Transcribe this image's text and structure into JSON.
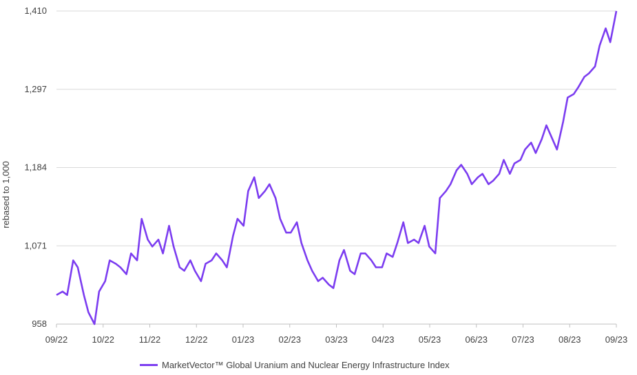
{
  "chart_data": {
    "type": "line",
    "ylabel": "rebased to 1,000",
    "yticks": [
      "958",
      "1,071",
      "1,184",
      "1,297",
      "1,410"
    ],
    "yvalues": [
      958,
      1071,
      1184,
      1297,
      1410
    ],
    "ylim": [
      958,
      1410
    ],
    "xticks": [
      "09/22",
      "10/22",
      "11/22",
      "12/22",
      "01/23",
      "02/23",
      "03/23",
      "04/23",
      "05/23",
      "06/23",
      "07/23",
      "08/23",
      "09/23"
    ],
    "grid": "horizontal",
    "legend_position": "bottom",
    "series": [
      {
        "name": "MarketVector™ Global Uranium and Nuclear Energy Infrastructure Index",
        "color": "#7b3cf0",
        "x": [
          "2022-09-01",
          "2022-09-05",
          "2022-09-08",
          "2022-09-12",
          "2022-09-15",
          "2022-09-19",
          "2022-09-22",
          "2022-09-26",
          "2022-09-29",
          "2022-10-03",
          "2022-10-06",
          "2022-10-10",
          "2022-10-13",
          "2022-10-17",
          "2022-10-20",
          "2022-10-24",
          "2022-10-27",
          "2022-10-31",
          "2022-11-03",
          "2022-11-07",
          "2022-11-10",
          "2022-11-14",
          "2022-11-17",
          "2022-11-21",
          "2022-11-24",
          "2022-11-28",
          "2022-12-01",
          "2022-12-05",
          "2022-12-08",
          "2022-12-12",
          "2022-12-15",
          "2022-12-19",
          "2022-12-22",
          "2022-12-26",
          "2022-12-29",
          "2023-01-02",
          "2023-01-05",
          "2023-01-09",
          "2023-01-12",
          "2023-01-16",
          "2023-01-19",
          "2023-01-23",
          "2023-01-26",
          "2023-01-30",
          "2023-02-02",
          "2023-02-06",
          "2023-02-09",
          "2023-02-13",
          "2023-02-16",
          "2023-02-20",
          "2023-02-23",
          "2023-02-27",
          "2023-03-02",
          "2023-03-06",
          "2023-03-09",
          "2023-03-13",
          "2023-03-16",
          "2023-03-20",
          "2023-03-23",
          "2023-03-27",
          "2023-03-30",
          "2023-04-03",
          "2023-04-06",
          "2023-04-10",
          "2023-04-13",
          "2023-04-17",
          "2023-04-20",
          "2023-04-24",
          "2023-04-27",
          "2023-05-01",
          "2023-05-04",
          "2023-05-08",
          "2023-05-11",
          "2023-05-15",
          "2023-05-18",
          "2023-05-22",
          "2023-05-25",
          "2023-05-29",
          "2023-06-01",
          "2023-06-05",
          "2023-06-08",
          "2023-06-12",
          "2023-06-15",
          "2023-06-19",
          "2023-06-22",
          "2023-06-26",
          "2023-06-29",
          "2023-07-03",
          "2023-07-06",
          "2023-07-10",
          "2023-07-13",
          "2023-07-17",
          "2023-07-20",
          "2023-07-24",
          "2023-07-27",
          "2023-07-31",
          "2023-08-03",
          "2023-08-07",
          "2023-08-10",
          "2023-08-14",
          "2023-08-17",
          "2023-08-21",
          "2023-08-24",
          "2023-08-28",
          "2023-08-31",
          "2023-09-04"
        ],
        "values": [
          1000,
          1005,
          1000,
          1050,
          1040,
          1000,
          975,
          958,
          1005,
          1020,
          1050,
          1045,
          1040,
          1030,
          1060,
          1050,
          1110,
          1080,
          1070,
          1080,
          1060,
          1100,
          1070,
          1040,
          1035,
          1050,
          1035,
          1020,
          1045,
          1050,
          1060,
          1050,
          1040,
          1085,
          1110,
          1100,
          1150,
          1170,
          1140,
          1150,
          1160,
          1140,
          1110,
          1090,
          1090,
          1105,
          1075,
          1050,
          1035,
          1020,
          1025,
          1015,
          1010,
          1050,
          1065,
          1035,
          1030,
          1060,
          1060,
          1050,
          1040,
          1040,
          1060,
          1055,
          1075,
          1105,
          1075,
          1080,
          1075,
          1100,
          1070,
          1060,
          1140,
          1150,
          1160,
          1180,
          1188,
          1175,
          1160,
          1170,
          1175,
          1160,
          1165,
          1175,
          1195,
          1175,
          1190,
          1195,
          1210,
          1220,
          1205,
          1225,
          1245,
          1225,
          1210,
          1250,
          1285,
          1290,
          1300,
          1315,
          1320,
          1330,
          1360,
          1385,
          1365,
          1410
        ]
      }
    ]
  }
}
